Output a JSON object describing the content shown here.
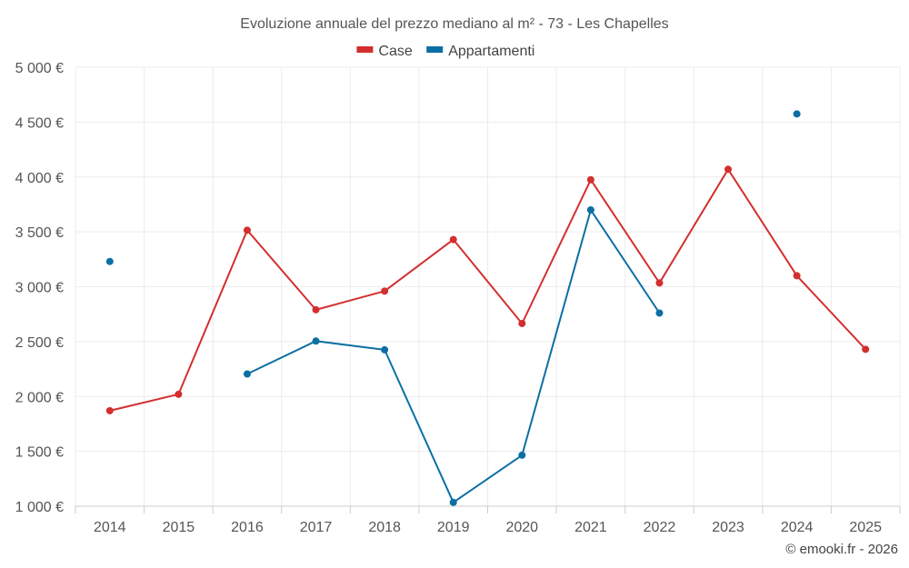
{
  "chart_data": {
    "type": "line",
    "title": "Evoluzione annuale del prezzo mediano al m² - 73 - Les Chapelles",
    "categories": [
      "2014",
      "2015",
      "2016",
      "2017",
      "2018",
      "2019",
      "2020",
      "2021",
      "2022",
      "2023",
      "2024",
      "2025"
    ],
    "ylim": [
      1000,
      5000
    ],
    "yticks": [
      1000,
      1500,
      2000,
      2500,
      3000,
      3500,
      4000,
      4500,
      5000
    ],
    "ytick_labels": [
      "1 000 €",
      "1 500 €",
      "2 000 €",
      "2 500 €",
      "3 000 €",
      "3 500 €",
      "4 000 €",
      "4 500 €",
      "5 000 €"
    ],
    "grid": true,
    "legend_position": "top-center",
    "series": [
      {
        "name": "Case",
        "color": "#d32f2f",
        "values": [
          1870,
          2020,
          3515,
          2790,
          2960,
          3430,
          2665,
          3975,
          3035,
          4070,
          3100,
          2430
        ]
      },
      {
        "name": "Appartamenti",
        "color": "#0b6fa4",
        "values": [
          3230,
          null,
          2205,
          2505,
          2425,
          1035,
          1465,
          3700,
          2760,
          null,
          4575,
          null
        ]
      }
    ]
  },
  "footer": {
    "credit": "© emooki.fr - 2026"
  }
}
